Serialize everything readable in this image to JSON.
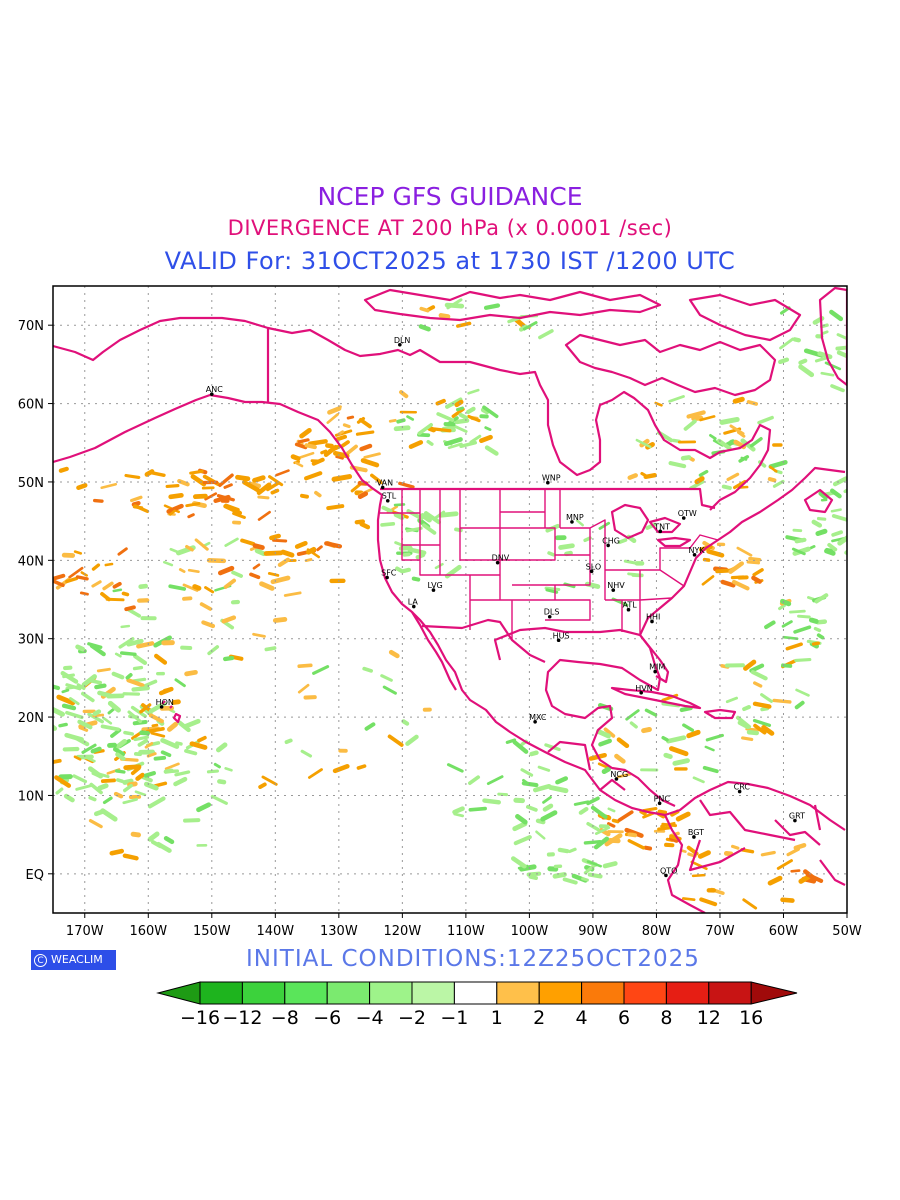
{
  "titles": {
    "line1": "NCEP GFS GUIDANCE",
    "line2": "DIVERGENCE AT 200 hPa (x 0.0001 /sec)",
    "line3": "VALID For: 31OCT2025 at 1730 IST /1200 UTC"
  },
  "map": {
    "projection": "lat-lon",
    "lon_ticks": [
      "170W",
      "160W",
      "150W",
      "140W",
      "130W",
      "120W",
      "110W",
      "100W",
      "90W",
      "80W",
      "70W",
      "60W",
      "50W"
    ],
    "lat_ticks": [
      "EQ",
      "10N",
      "20N",
      "30N",
      "40N",
      "50N",
      "60N",
      "70N"
    ],
    "lon_range": [
      -175,
      -50
    ],
    "lat_range": [
      -5,
      75
    ],
    "grid": "dotted",
    "boundary_color": "#e0107a",
    "cities": [
      {
        "code": "ANC",
        "lon": -150.0,
        "lat": 61.2
      },
      {
        "code": "DLN",
        "lon": -120.4,
        "lat": 67.5
      },
      {
        "code": "VAN",
        "lon": -123.1,
        "lat": 49.3
      },
      {
        "code": "STL",
        "lon": -122.3,
        "lat": 47.6
      },
      {
        "code": "WNP",
        "lon": -97.1,
        "lat": 49.9
      },
      {
        "code": "MNP",
        "lon": -93.3,
        "lat": 44.9
      },
      {
        "code": "OTW",
        "lon": -75.7,
        "lat": 45.4
      },
      {
        "code": "TNT",
        "lon": -79.4,
        "lat": 43.7
      },
      {
        "code": "CHG",
        "lon": -87.6,
        "lat": 41.9
      },
      {
        "code": "NYK",
        "lon": -74.0,
        "lat": 40.7
      },
      {
        "code": "DNV",
        "lon": -105.0,
        "lat": 39.7
      },
      {
        "code": "SFC",
        "lon": -122.4,
        "lat": 37.8
      },
      {
        "code": "SLO",
        "lon": -90.2,
        "lat": 38.6
      },
      {
        "code": "LVG",
        "lon": -115.1,
        "lat": 36.2
      },
      {
        "code": "NHV",
        "lon": -86.8,
        "lat": 36.2
      },
      {
        "code": "LA",
        "lon": -118.2,
        "lat": 34.1
      },
      {
        "code": "ATL",
        "lon": -84.4,
        "lat": 33.7
      },
      {
        "code": "DLS",
        "lon": -96.8,
        "lat": 32.8
      },
      {
        "code": "HHI",
        "lon": -80.7,
        "lat": 32.2
      },
      {
        "code": "HUS",
        "lon": -95.4,
        "lat": 29.8
      },
      {
        "code": "MIM",
        "lon": -80.2,
        "lat": 25.8
      },
      {
        "code": "HVN",
        "lon": -82.4,
        "lat": 23.1
      },
      {
        "code": "HON",
        "lon": -157.9,
        "lat": 21.3
      },
      {
        "code": "MXC",
        "lon": -99.1,
        "lat": 19.4
      },
      {
        "code": "NCG",
        "lon": -86.3,
        "lat": 12.1
      },
      {
        "code": "CRC",
        "lon": -66.9,
        "lat": 10.5
      },
      {
        "code": "PNC",
        "lon": -79.5,
        "lat": 9.0
      },
      {
        "code": "GRT",
        "lon": -58.2,
        "lat": 6.8
      },
      {
        "code": "BGT",
        "lon": -74.1,
        "lat": 4.7
      },
      {
        "code": "QTO",
        "lon": -78.5,
        "lat": -0.2
      }
    ],
    "field_colors": {
      "neg_light": "#a6ef8c",
      "neg_med": "#74e065",
      "pos_light": "#fbbc44",
      "pos_med": "#f5a000",
      "pos_strong": "#f07010"
    }
  },
  "footer": {
    "logo_text": "WEACLIM",
    "initial_conditions": "INITIAL CONDITIONS:12Z25OCT2025"
  },
  "colorbar": {
    "labels": [
      "-16",
      "-12",
      "-8",
      "-6",
      "-4",
      "-2",
      "-1",
      "1",
      "2",
      "4",
      "6",
      "8",
      "12",
      "16"
    ],
    "colors": [
      "#1e9b14",
      "#1eb41e",
      "#3cd23c",
      "#5ae55a",
      "#7bea6f",
      "#9ef38a",
      "#bbf6a6",
      "#ffffff",
      "#ffc04a",
      "#ffa000",
      "#fa7a0a",
      "#ff4614",
      "#e61e14",
      "#c81414",
      "#a00a0a"
    ]
  }
}
